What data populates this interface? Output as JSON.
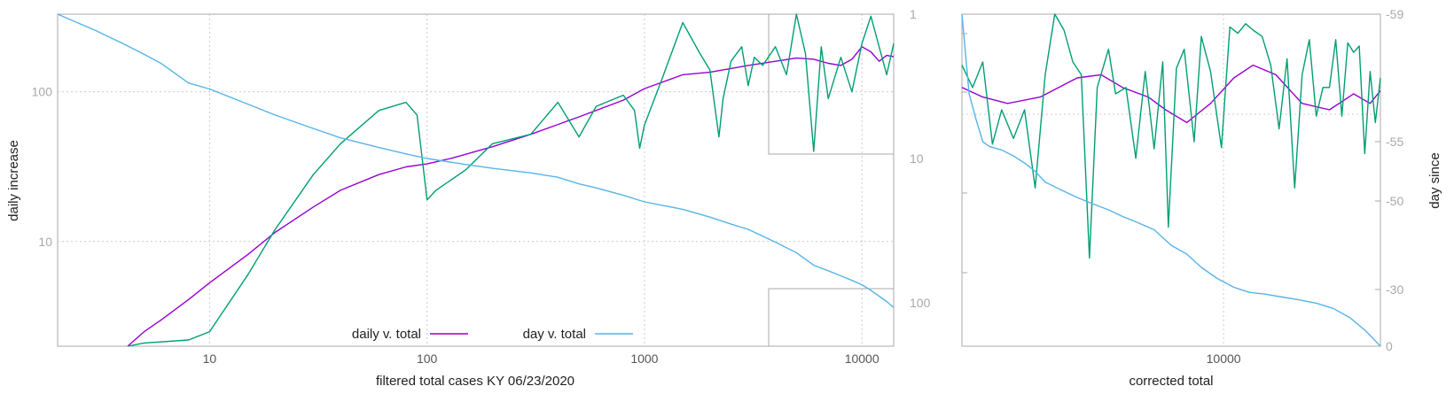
{
  "chart_data": [
    {
      "type": "line",
      "xlabel": "filtered total cases KY 06/23/2020",
      "ylabel": "daily increase",
      "y2label": "",
      "x_scale": "log",
      "y_scale": "log",
      "y2_scale": "log",
      "xlim": [
        2,
        14000
      ],
      "ylim": [
        2,
        330
      ],
      "y2lim": [
        1,
        200
      ],
      "y2_reversed": true,
      "x_ticks": [
        10,
        100,
        1000,
        10000
      ],
      "y_ticks": [
        10,
        100
      ],
      "y2_ticks": [
        1,
        10,
        100
      ],
      "grid": true,
      "legend": "bottom-center",
      "series": [
        {
          "name": "daily v. total",
          "color": "#9400d3",
          "axis": "left",
          "x": [
            4.2,
            5,
            6,
            8,
            10,
            15,
            20,
            30,
            40,
            60,
            80,
            100,
            130,
            200,
            300,
            500,
            800,
            1000,
            1500,
            2000,
            3000,
            4000,
            5000,
            6000,
            7000,
            8000,
            9000,
            10000,
            11000,
            12000,
            13000,
            14000
          ],
          "values": [
            2,
            2.5,
            3,
            4.1,
            5.3,
            8.2,
            11.5,
            17,
            22,
            28,
            31.5,
            33,
            36,
            43,
            52,
            68,
            88,
            105,
            130,
            135,
            150,
            160,
            168,
            165,
            155,
            150,
            165,
            200,
            185,
            160,
            175,
            172
          ]
        },
        {
          "name": "",
          "color": "#009e73",
          "axis": "left",
          "x": [
            4.2,
            5,
            8,
            10,
            15,
            20,
            30,
            40,
            60,
            80,
            90,
            100,
            110,
            150,
            200,
            300,
            400,
            500,
            600,
            800,
            900,
            950,
            1000,
            1200,
            1500,
            1800,
            2000,
            2200,
            2300,
            2500,
            2800,
            3000,
            3200,
            3500,
            4000,
            4500,
            5000,
            5500,
            6000,
            6500,
            7000,
            8000,
            9000,
            10000,
            11000,
            12000,
            13000,
            14000
          ],
          "values": [
            2,
            2.1,
            2.2,
            2.5,
            6,
            12,
            28,
            45,
            75,
            85,
            70,
            19,
            22,
            30,
            45,
            52,
            85,
            50,
            80,
            95,
            75,
            42,
            60,
            120,
            290,
            180,
            140,
            50,
            90,
            160,
            200,
            110,
            170,
            150,
            200,
            130,
            340,
            180,
            40,
            200,
            90,
            170,
            100,
            210,
            320,
            200,
            130,
            210
          ]
        },
        {
          "name": "day v. total",
          "color": "#56b4e9",
          "axis": "right",
          "x": [
            2,
            3,
            4,
            5,
            6,
            7,
            8,
            10,
            15,
            20,
            30,
            40,
            60,
            80,
            100,
            150,
            200,
            300,
            400,
            500,
            600,
            800,
            1000,
            1500,
            2000,
            2500,
            3000,
            4000,
            5000,
            6000,
            7000,
            8000,
            9000,
            10000,
            11000,
            12000,
            13000,
            14000
          ],
          "values": [
            1,
            1.3,
            1.6,
            1.9,
            2.2,
            2.6,
            3,
            3.3,
            4.2,
            5,
            6.2,
            7.2,
            8.4,
            9.3,
            10,
            11,
            11.7,
            12.6,
            13.5,
            15,
            16,
            18,
            20,
            22.5,
            25.5,
            28.5,
            31,
            38,
            45,
            55,
            60,
            65,
            70,
            75,
            82,
            90,
            98,
            108
          ]
        }
      ]
    },
    {
      "type": "line",
      "xlabel": "corrected total",
      "ylabel": "",
      "y2label": "day since",
      "x_scale": "log",
      "y_scale": "log",
      "xlim": [
        2900,
        21000
      ],
      "ylim": [
        6,
        100
      ],
      "y2lim": [
        0,
        -59
      ],
      "x_ticks": [
        10000
      ],
      "y2_ticks": [
        -59,
        -55,
        -50,
        -30,
        0
      ],
      "grid": true,
      "series": [
        {
          "name": "",
          "color": "#9400d3",
          "axis": "left",
          "x": [
            2900,
            3200,
            3600,
            4200,
            5000,
            5600,
            6200,
            7000,
            7600,
            8400,
            9400,
            10500,
            11500,
            12800,
            14500,
            16500,
            18500,
            20000,
            21000
          ],
          "values": [
            60,
            55,
            50,
            55,
            68,
            70,
            62,
            55,
            48,
            42,
            52,
            68,
            78,
            70,
            52,
            48,
            58,
            52,
            60
          ],
          "y2_values": [
            -56.7,
            -56.4,
            -56.2,
            -56.4,
            -57.0,
            -57.1,
            -56.7,
            -56.4,
            -56.0,
            -55.6,
            -56.2,
            -57.0,
            -57.4,
            -57.1,
            -56.2,
            -56.0,
            -56.5,
            -56.2,
            -56.6
          ]
        },
        {
          "name": "",
          "color": "#009e73",
          "axis": "left",
          "x": [
            2900,
            3050,
            3200,
            3350,
            3500,
            3700,
            3900,
            4100,
            4300,
            4500,
            4700,
            4900,
            5100,
            5300,
            5500,
            5800,
            6000,
            6300,
            6600,
            6900,
            7200,
            7500,
            7700,
            8000,
            8300,
            8700,
            9000,
            9400,
            9900,
            10300,
            10700,
            11100,
            11500,
            12000,
            12500,
            13000,
            13500,
            14000,
            14500,
            15000,
            15500,
            16000,
            16500,
            17000,
            17500,
            18000,
            18500,
            19000,
            19500,
            20000,
            20500,
            21000
          ],
          "values": [
            68,
            55,
            70,
            38,
            48,
            40,
            48,
            18,
            60,
            100,
            85,
            70,
            60,
            4,
            55,
            75,
            52,
            55,
            28,
            62,
            32,
            70,
            8,
            65,
            75,
            38,
            85,
            60,
            35,
            92,
            88,
            95,
            90,
            85,
            65,
            40,
            72,
            18,
            60,
            80,
            45,
            55,
            55,
            80,
            45,
            78,
            70,
            75,
            30,
            60,
            42,
            58
          ],
          "y2_values": [
            -57.4,
            -56.7,
            -57.5,
            -54.8,
            -56.0,
            -55.1,
            -56.0,
            -51.1,
            -57.1,
            -59.0,
            -58.5,
            -57.5,
            -57.1,
            -37.1,
            -56.7,
            -57.9,
            -56.5,
            -56.7,
            -53.6,
            -57.2,
            -54.4,
            -57.5,
            -44.1,
            -57.3,
            -57.9,
            -55.0,
            -58.3,
            -57.2,
            -54.5,
            -58.6,
            -58.4,
            -58.7,
            -58.5,
            -58.3,
            -57.4,
            -55.4,
            -57.6,
            -51.1,
            -57.1,
            -58.2,
            -55.8,
            -56.7,
            -56.7,
            -58.2,
            -55.8,
            -58.1,
            -57.8,
            -58.0,
            -54.0,
            -57.2,
            -55.6,
            -57.0
          ]
        },
        {
          "name": "",
          "color": "#56b4e9",
          "axis": "right",
          "x": [
            2900,
            3000,
            3100,
            3200,
            3300,
            3500,
            3700,
            3900,
            4100,
            4300,
            4600,
            5000,
            5400,
            5800,
            6200,
            6700,
            7200,
            7800,
            8400,
            9000,
            9700,
            10500,
            11300,
            12200,
            13200,
            14300,
            15500,
            16800,
            18200,
            19600,
            21000
          ],
          "y2_values": [
            -59,
            -56.5,
            -55.7,
            -55,
            -54.6,
            -54.3,
            -53.8,
            -53.2,
            -52.5,
            -51.6,
            -51,
            -50.3,
            -49.3,
            -48,
            -46.5,
            -45,
            -43.5,
            -40,
            -38,
            -35,
            -32.5,
            -30.5,
            -28.5,
            -27.5,
            -26,
            -24.5,
            -22.8,
            -20,
            -15,
            -8,
            0
          ]
        }
      ]
    }
  ],
  "panel1": {
    "xlabel": "filtered total cases KY 06/23/2020",
    "ylabel": "daily increase",
    "x_tick_labels": [
      "10",
      "100",
      "1000",
      "10000"
    ],
    "y_tick_labels": [
      "10",
      "100"
    ],
    "y2_tick_labels": [
      "1",
      "10",
      "100"
    ],
    "legend": [
      {
        "label": "daily v. total",
        "color": "#9400d3"
      },
      {
        "label": "day v. total",
        "color": "#56b4e9"
      }
    ]
  },
  "panel2": {
    "xlabel": "corrected total",
    "y2label": "day since",
    "x_tick_labels": [
      "10000"
    ],
    "y2_tick_labels": [
      "-59",
      "-55",
      "-50",
      "-30",
      "0"
    ]
  }
}
